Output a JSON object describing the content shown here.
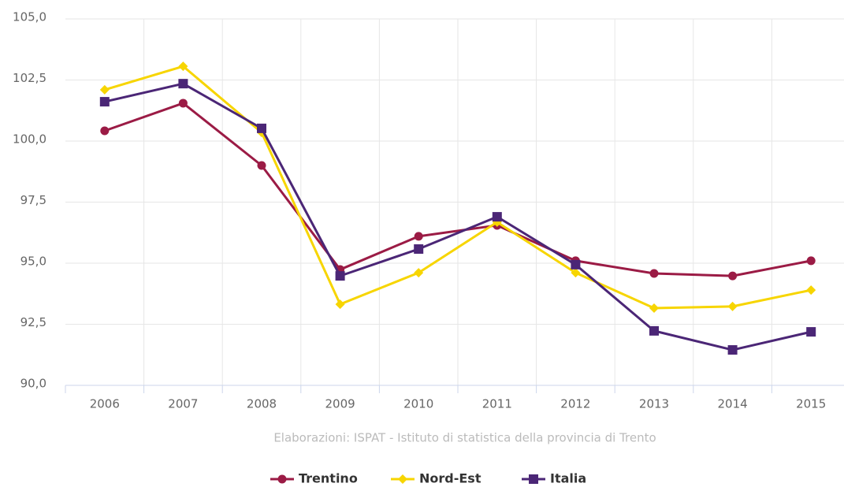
{
  "chart_data": {
    "type": "line",
    "source": "Elaborazioni: ISPAT - Istituto di statistica della provincia di Trento",
    "categories": [
      "2006",
      "2007",
      "2008",
      "2009",
      "2010",
      "2011",
      "2012",
      "2013",
      "2014",
      "2015"
    ],
    "series": [
      {
        "name": "Trentino",
        "color": "#9b1b45",
        "marker": "circle",
        "values": [
          100.42,
          101.55,
          99.0,
          94.74,
          96.1,
          96.55,
          95.1,
          94.58,
          94.48,
          95.1
        ]
      },
      {
        "name": "Nord-Est",
        "color": "#f7d500",
        "marker": "diamond",
        "values": [
          102.1,
          103.06,
          100.35,
          93.32,
          94.61,
          96.68,
          94.61,
          93.16,
          93.23,
          93.9
        ]
      },
      {
        "name": "Italia",
        "color": "#4b2676",
        "marker": "square",
        "values": [
          101.61,
          102.35,
          100.52,
          94.48,
          95.58,
          96.9,
          94.94,
          92.23,
          91.45,
          92.19
        ]
      }
    ],
    "ylim": [
      90,
      105
    ],
    "yticks": [
      {
        "value": 90,
        "label": "90,0"
      },
      {
        "value": 92.5,
        "label": "92,5"
      },
      {
        "value": 95,
        "label": "95,0"
      },
      {
        "value": 97.5,
        "label": "97,5"
      },
      {
        "value": 100,
        "label": "100,0"
      },
      {
        "value": 102.5,
        "label": "102,5"
      },
      {
        "value": 105,
        "label": "105,0"
      }
    ],
    "grid": true,
    "legend": "bottom"
  }
}
